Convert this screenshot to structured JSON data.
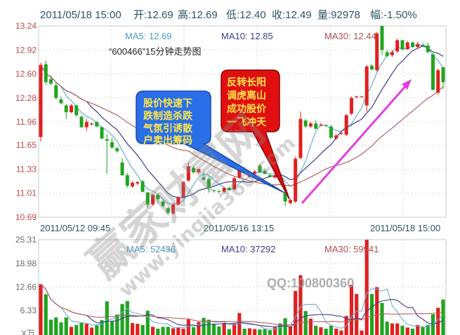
{
  "header": {
    "datetime": "2011/05/18 15:00",
    "open": "开:12.69",
    "high": "高:12.69",
    "low": "低:12.40",
    "close": "收:12.49",
    "volume": "量:92978",
    "change": "幅:-1.50%"
  },
  "price_panel": {
    "ma5": "MA5: 12.69",
    "ma10": "MA10: 12.85",
    "ma30": "MA30: 12.44",
    "subtitle": "“600466”15分钟走势图"
  },
  "volume_panel": {
    "ma5": "MA5: 52436",
    "ma10": "MA10: 37292",
    "ma30": "MA30: 59941",
    "unit": "X万"
  },
  "callouts": {
    "blue": [
      "股价快速下",
      "跌制造杀跌",
      "气氛引诱散",
      "户卖出筹码"
    ],
    "red": [
      "反转长阳",
      "调虎离山",
      "成功股价",
      "一飞冲天"
    ]
  },
  "watermark": {
    "brand": "赢家财富网",
    "site": "www.yingjia360.com",
    "qq": "QQ:100800360"
  },
  "colors": {
    "up": "#e02020",
    "down": "#1fa51f",
    "ma5": "#6aaed0",
    "ma10": "#3c3c8c",
    "ma30": "#b86060",
    "arrow": "#e040e0",
    "blue_callout": "#2a6ee8",
    "red_callout": "#e01010"
  },
  "chart_data": [
    {
      "type": "candlestick",
      "title": "“600466”15分钟走势图",
      "ylim": [
        10.69,
        13.24
      ],
      "yticks": [
        "13.24",
        "12.92",
        "12.60",
        "12.28",
        "11.96",
        "11.65",
        "11.33",
        "11.01",
        "10.69"
      ],
      "xticks": [
        "2011/05/12 09:45",
        "2011/05/16 13:15",
        "2011/05/18 15:00"
      ],
      "grid": true,
      "moving_averages": [
        "MA5",
        "MA10",
        "MA30"
      ],
      "ohlc": [
        [
          11.76,
          12.75,
          11.7,
          12.72
        ],
        [
          12.73,
          12.78,
          12.45,
          12.49
        ],
        [
          12.53,
          12.58,
          12.45,
          12.47
        ],
        [
          12.45,
          12.48,
          12.26,
          12.28
        ],
        [
          12.26,
          12.3,
          12.19,
          12.21
        ],
        [
          12.18,
          12.2,
          12.0,
          12.09
        ],
        [
          12.09,
          12.2,
          12.08,
          12.18
        ],
        [
          12.18,
          12.19,
          12.03,
          12.05
        ],
        [
          12.03,
          12.05,
          11.88,
          11.89
        ],
        [
          11.89,
          12.0,
          11.84,
          11.96
        ],
        [
          11.93,
          11.95,
          11.91,
          11.94
        ],
        [
          11.96,
          11.97,
          11.89,
          11.9
        ],
        [
          11.89,
          11.9,
          11.73,
          11.74
        ],
        [
          11.73,
          11.8,
          11.27,
          11.71
        ],
        [
          11.69,
          11.75,
          11.6,
          11.62
        ],
        [
          11.61,
          11.63,
          11.55,
          11.57
        ],
        [
          11.42,
          11.48,
          11.24,
          11.25
        ],
        [
          11.25,
          11.28,
          11.08,
          11.11
        ],
        [
          11.1,
          11.17,
          11.08,
          11.15
        ],
        [
          11.14,
          11.17,
          11.12,
          11.16
        ],
        [
          11.17,
          11.19,
          11.02,
          11.03
        ],
        [
          11.02,
          11.03,
          10.8,
          10.86
        ],
        [
          10.86,
          11.0,
          10.84,
          10.99
        ],
        [
          10.99,
          11.01,
          10.88,
          10.93
        ],
        [
          10.9,
          10.92,
          10.82,
          10.84
        ],
        [
          10.81,
          10.83,
          10.72,
          10.75
        ],
        [
          10.74,
          10.88,
          10.72,
          10.86
        ],
        [
          10.86,
          10.97,
          10.84,
          10.95
        ],
        [
          10.96,
          11.17,
          10.94,
          11.16
        ],
        [
          11.18,
          11.42,
          11.16,
          11.37
        ],
        [
          11.35,
          11.37,
          11.27,
          11.29
        ],
        [
          11.29,
          11.34,
          11.27,
          11.33
        ],
        [
          11.22,
          11.3,
          11.18,
          11.19
        ],
        [
          11.2,
          11.24,
          11.02,
          11.08
        ],
        [
          11.05,
          11.06,
          11.02,
          11.04
        ],
        [
          11.04,
          11.05,
          11.0,
          11.03
        ],
        [
          11.03,
          11.1,
          11.01,
          11.08
        ],
        [
          11.08,
          11.1,
          11.04,
          11.05
        ],
        [
          11.06,
          11.23,
          11.05,
          11.21
        ],
        [
          11.22,
          11.36,
          11.2,
          11.33
        ],
        [
          11.33,
          11.36,
          11.27,
          11.29
        ],
        [
          11.23,
          11.27,
          11.22,
          11.25
        ],
        [
          11.27,
          11.32,
          11.25,
          11.3
        ],
        [
          11.38,
          11.4,
          11.28,
          11.29
        ],
        [
          11.31,
          11.34,
          11.26,
          11.27
        ],
        [
          11.25,
          11.27,
          11.22,
          11.23
        ],
        [
          11.22,
          11.26,
          11.2,
          11.25
        ],
        [
          11.23,
          11.25,
          11.19,
          11.2
        ],
        [
          11.02,
          11.04,
          10.84,
          10.9
        ],
        [
          10.88,
          10.94,
          10.86,
          10.92
        ],
        [
          10.9,
          11.5,
          10.88,
          11.47
        ],
        [
          11.48,
          12.1,
          11.46,
          12.0
        ],
        [
          11.98,
          12.0,
          11.88,
          11.9
        ],
        [
          11.9,
          11.96,
          11.88,
          11.94
        ],
        [
          11.94,
          11.98,
          11.86,
          11.87
        ],
        [
          11.92,
          11.95,
          11.9,
          11.92
        ],
        [
          11.92,
          11.93,
          11.9,
          11.91
        ],
        [
          11.9,
          11.92,
          11.74,
          11.75
        ],
        [
          11.74,
          11.8,
          11.72,
          11.78
        ],
        [
          11.81,
          11.83,
          11.79,
          11.81
        ],
        [
          11.79,
          12.07,
          11.77,
          12.05
        ],
        [
          12.07,
          12.3,
          12.05,
          12.28
        ],
        [
          12.29,
          12.31,
          12.28,
          12.3
        ],
        [
          12.3,
          12.31,
          12.29,
          12.3
        ],
        [
          12.18,
          12.72,
          12.1,
          12.7
        ],
        [
          12.71,
          12.73,
          12.65,
          12.66
        ],
        [
          12.65,
          13.16,
          12.63,
          13.14
        ],
        [
          13.24,
          13.24,
          12.85,
          12.92
        ],
        [
          12.89,
          12.92,
          12.82,
          12.84
        ],
        [
          12.85,
          12.92,
          12.83,
          12.89
        ],
        [
          12.9,
          13.07,
          12.88,
          13.05
        ],
        [
          13.05,
          13.06,
          12.92,
          12.93
        ],
        [
          12.93,
          13.04,
          12.92,
          13.02
        ],
        [
          13.02,
          13.03,
          12.95,
          12.96
        ],
        [
          12.96,
          13.03,
          12.94,
          13.0
        ],
        [
          12.99,
          13.01,
          12.96,
          12.97
        ],
        [
          12.98,
          13.02,
          12.88,
          12.89
        ],
        [
          12.86,
          12.88,
          12.38,
          12.39
        ],
        [
          12.35,
          12.67,
          12.32,
          12.65
        ],
        [
          12.69,
          12.69,
          12.4,
          12.49
        ]
      ]
    },
    {
      "type": "bar",
      "ylabel": "X万",
      "ylim": [
        0,
        25.31
      ],
      "yticks": [
        "25.31",
        "18.98",
        "12.66",
        "6.33"
      ],
      "grid": true,
      "moving_averages": [
        "MA5",
        "MA10",
        "MA30"
      ],
      "volume": [
        13.4,
        10.7,
        3.9,
        4.5,
        3.2,
        4.5,
        2.0,
        2.5,
        3.2,
        2.8,
        1.8,
        2.4,
        3.8,
        8.8,
        3.5,
        5.3,
        8.1,
        8.9,
        3.0,
        2.8,
        2.5,
        6.3,
        2.0,
        1.5,
        2.0,
        2.0,
        1.6,
        1.9,
        1.5,
        4.0,
        1.9,
        3.3,
        4.4,
        3.9,
        2.8,
        2.1,
        3.0,
        1.4,
        2.8,
        5.7,
        1.5,
        1.6,
        1.4,
        1.3,
        1.4,
        1.1,
        1.9,
        2.9,
        4.3,
        2.1,
        11.6,
        15.8,
        6.2,
        4.2,
        2.3,
        1.9,
        1.5,
        2.3,
        1.5,
        1.0,
        4.9,
        13.2,
        10.8,
        1.0,
        25.3,
        10.8,
        12.6,
        8.4,
        3.4,
        2.9,
        2.9,
        2.3,
        1.8,
        1.5,
        2.5,
        1.9,
        2.5,
        5.4,
        7.1,
        9.3
      ]
    }
  ]
}
